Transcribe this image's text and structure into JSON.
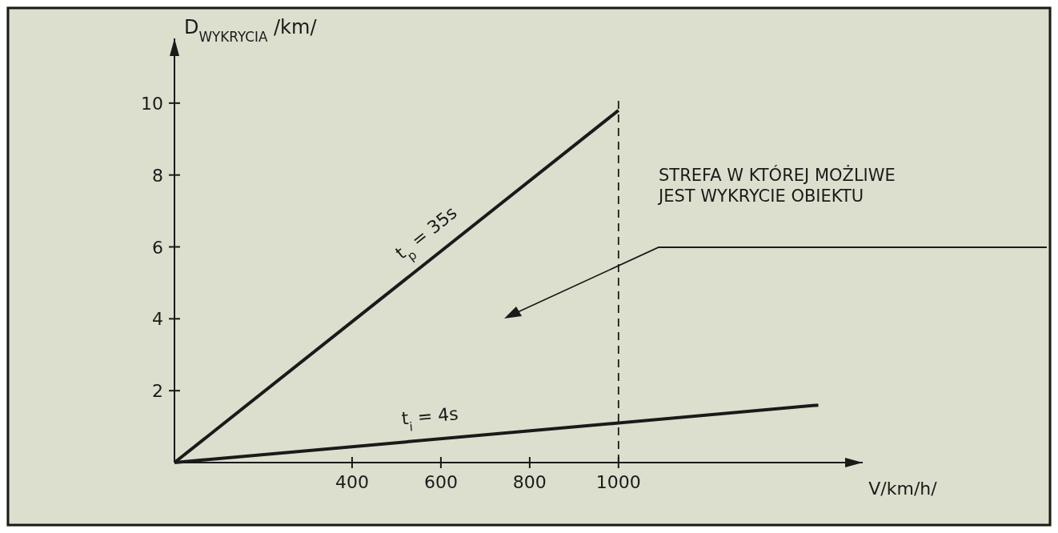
{
  "chart_data": {
    "type": "line",
    "xlabel": "V/km/h/",
    "ylabel": "D$_{WYKRYCIA}$ /km/",
    "xlim": [
      0,
      1550
    ],
    "xticks": [
      400,
      600,
      800,
      1000
    ],
    "ylim": [
      0,
      11.8
    ],
    "yticks": [
      2,
      4,
      6,
      8,
      10
    ],
    "series": [
      {
        "name": "t$_{p}$ = 35s",
        "color": "#1a1a1a",
        "x": [
          0,
          1000
        ],
        "values": [
          0,
          9.8
        ]
      },
      {
        "name": "t$_{i}$ = 4s",
        "color": "#1a1a1a",
        "x": [
          0,
          1450
        ],
        "values": [
          0,
          1.6
        ]
      }
    ],
    "ref_lines": [
      {
        "axis": "x",
        "value": 1000,
        "line_style": "dashed",
        "color": "#1a1a1a"
      }
    ],
    "annotations": [
      "STREFA W KTÓREJ MOŻLIWE\nJEST WYKRYCIE OBIEKTU"
    ],
    "grid": false,
    "marker": "none",
    "line_style": "solid"
  }
}
